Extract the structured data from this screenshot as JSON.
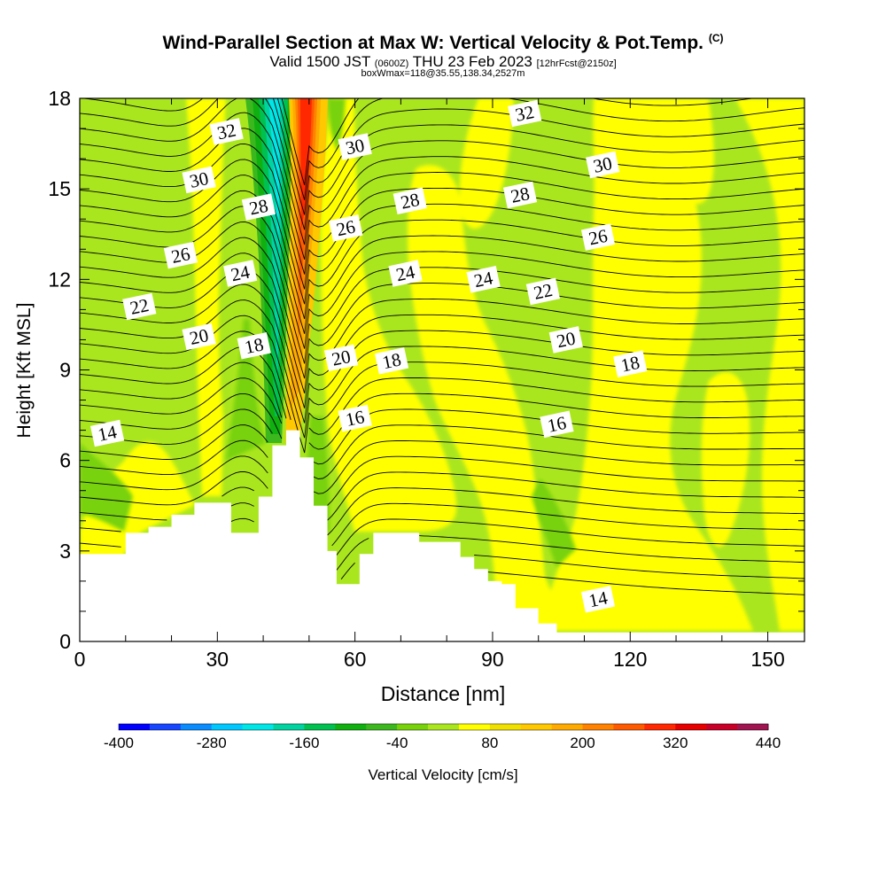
{
  "header": {
    "title": "Wind-Parallel Section at Max W: Vertical Velocity & Pot.Temp.",
    "copyright": "(C)",
    "valid_main": "Valid 1500 JST",
    "valid_utc": "(0600Z)",
    "valid_date": "THU 23 Feb 2023",
    "forecast": "[12hrFcst@2150z]",
    "boxinfo": "boxWmax=118@35.55,138.34,2527m"
  },
  "chart_data": {
    "type": "heatmap",
    "xlabel": "Distance [nm]",
    "ylabel": "Height [Kft MSL]",
    "xlim": [
      0,
      158
    ],
    "ylim": [
      0,
      18
    ],
    "xticks": [
      0,
      30,
      60,
      90,
      120,
      150
    ],
    "yticks": [
      0,
      3,
      6,
      9,
      12,
      15,
      18
    ],
    "grid": false,
    "colorbar": {
      "label": "Vertical Velocity [cm/s]",
      "tick_labels": [
        "-400",
        "-280",
        "-160",
        "-40",
        "80",
        "200",
        "320",
        "440"
      ],
      "tick_values": [
        -400,
        -280,
        -160,
        -40,
        80,
        200,
        320,
        440
      ],
      "boundaries": [
        -400,
        -360,
        -320,
        -280,
        -240,
        -200,
        -160,
        -120,
        -80,
        -40,
        0,
        40,
        80,
        120,
        160,
        200,
        240,
        280,
        320,
        360,
        400,
        440
      ],
      "colors": [
        "#0000ff",
        "#1846ff",
        "#0a8cff",
        "#00c8ff",
        "#00e6e6",
        "#00d2a0",
        "#00c050",
        "#10b010",
        "#3cb81e",
        "#78d20a",
        "#aae61e",
        "#ffff00",
        "#f0e000",
        "#ffc800",
        "#ffaa00",
        "#ff8200",
        "#ff5a00",
        "#ff2800",
        "#e60000",
        "#c80028",
        "#a01450",
        "#6e0a78"
      ]
    },
    "terrain_height_kft": [
      [
        0,
        2.9
      ],
      [
        1,
        2.9
      ],
      [
        5,
        2.9
      ],
      [
        10,
        3.6
      ],
      [
        15,
        3.8
      ],
      [
        20,
        4.2
      ],
      [
        25,
        4.6
      ],
      [
        30,
        4.6
      ],
      [
        33,
        3.6
      ],
      [
        36,
        3.6
      ],
      [
        39,
        4.8
      ],
      [
        42,
        6.5
      ],
      [
        45,
        7.0
      ],
      [
        48,
        6.1
      ],
      [
        51,
        4.5
      ],
      [
        54,
        3.0
      ],
      [
        56,
        1.9
      ],
      [
        58,
        1.9
      ],
      [
        61,
        2.9
      ],
      [
        64,
        3.6
      ],
      [
        67,
        3.6
      ],
      [
        70,
        3.6
      ],
      [
        74,
        3.3
      ],
      [
        80,
        3.3
      ],
      [
        83,
        2.8
      ],
      [
        86,
        2.4
      ],
      [
        89,
        2.0
      ],
      [
        92,
        1.9
      ],
      [
        95,
        1.1
      ],
      [
        100,
        0.6
      ],
      [
        104,
        0.3
      ],
      [
        158,
        0.3
      ]
    ],
    "theta_contour_labels": [
      {
        "label": "32",
        "x": 32,
        "y": 16.9
      },
      {
        "label": "30",
        "x": 26,
        "y": 15.3
      },
      {
        "label": "28",
        "x": 39,
        "y": 14.4
      },
      {
        "label": "26",
        "x": 22,
        "y": 12.8
      },
      {
        "label": "24",
        "x": 35,
        "y": 12.2
      },
      {
        "label": "22",
        "x": 13,
        "y": 11.1
      },
      {
        "label": "20",
        "x": 26,
        "y": 10.1
      },
      {
        "label": "18",
        "x": 38,
        "y": 9.8
      },
      {
        "label": "14",
        "x": 6,
        "y": 6.9
      },
      {
        "label": "30",
        "x": 60,
        "y": 16.4
      },
      {
        "label": "28",
        "x": 72,
        "y": 14.6
      },
      {
        "label": "26",
        "x": 58,
        "y": 13.7
      },
      {
        "label": "24",
        "x": 71,
        "y": 12.2
      },
      {
        "label": "20",
        "x": 57,
        "y": 9.4
      },
      {
        "label": "18",
        "x": 68,
        "y": 9.3
      },
      {
        "label": "16",
        "x": 60,
        "y": 7.4
      },
      {
        "label": "32",
        "x": 97,
        "y": 17.5
      },
      {
        "label": "28",
        "x": 96,
        "y": 14.8
      },
      {
        "label": "24",
        "x": 88,
        "y": 12.0
      },
      {
        "label": "30",
        "x": 114,
        "y": 15.8
      },
      {
        "label": "26",
        "x": 113,
        "y": 13.4
      },
      {
        "label": "22",
        "x": 101,
        "y": 11.6
      },
      {
        "label": "20",
        "x": 106,
        "y": 10.0
      },
      {
        "label": "18",
        "x": 120,
        "y": 9.2
      },
      {
        "label": "16",
        "x": 104,
        "y": 7.2
      },
      {
        "label": "14",
        "x": 113,
        "y": 1.4
      }
    ],
    "velocity_regions": [
      {
        "name": "updraft-max",
        "value": 320,
        "x": [
          47,
          52
        ],
        "y": [
          13,
          18
        ]
      },
      {
        "name": "updraft-strong",
        "value": 200,
        "x": [
          46,
          53
        ],
        "y": [
          9,
          18
        ]
      },
      {
        "name": "downdraft-core",
        "value": -200,
        "x": [
          41,
          45
        ],
        "y": [
          8,
          18
        ]
      }
    ]
  }
}
